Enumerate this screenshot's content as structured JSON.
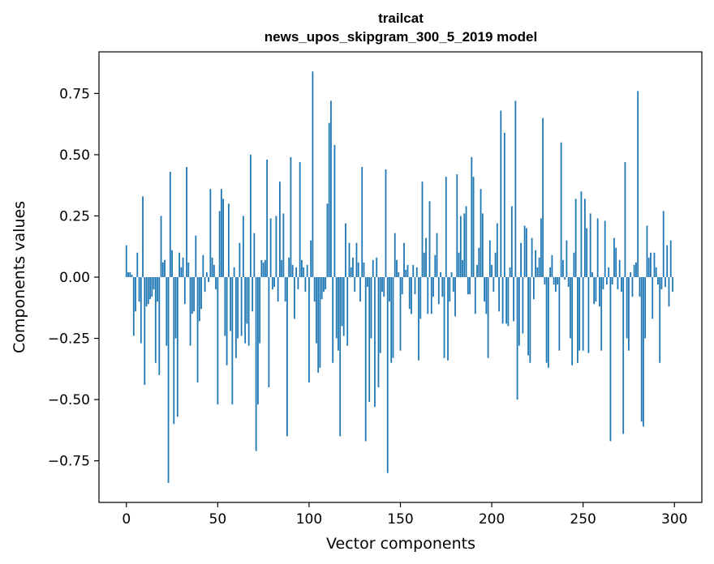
{
  "chart_data": {
    "type": "bar",
    "title": "trailcat",
    "subtitle": "news_upos_skipgram_300_5_2019 model",
    "xlabel": "Vector components",
    "ylabel": "Components values",
    "xlim": [
      -15,
      315
    ],
    "ylim": [
      -0.92,
      0.92
    ],
    "x_ticks": [
      0,
      50,
      100,
      150,
      200,
      250,
      300
    ],
    "x_tick_labels": [
      "0",
      "50",
      "100",
      "150",
      "200",
      "250",
      "300"
    ],
    "y_ticks": [
      0.75,
      0.5,
      0.25,
      0.0,
      -0.25,
      -0.5,
      -0.75
    ],
    "y_tick_labels": [
      "0.75",
      "0.50",
      "0.25",
      "0.00",
      "−0.25",
      "−0.50",
      "−0.75"
    ],
    "bar_color": "#1f77b4",
    "x": "0..299",
    "values": [
      0.13,
      0.02,
      0.02,
      0.01,
      -0.24,
      -0.14,
      0.1,
      -0.1,
      -0.27,
      0.33,
      -0.44,
      -0.12,
      -0.11,
      -0.09,
      -0.08,
      -0.05,
      -0.35,
      -0.1,
      -0.4,
      0.25,
      0.06,
      0.07,
      -0.28,
      -0.84,
      0.43,
      0.11,
      -0.6,
      -0.25,
      -0.57,
      0.1,
      0.04,
      0.08,
      -0.11,
      0.45,
      0.06,
      -0.28,
      -0.15,
      -0.14,
      0.17,
      -0.43,
      -0.18,
      -0.13,
      0.09,
      -0.06,
      0.02,
      -0.02,
      0.36,
      0.08,
      0.05,
      -0.05,
      -0.52,
      0.27,
      0.36,
      0.32,
      -0.24,
      -0.36,
      0.3,
      -0.22,
      -0.52,
      0.04,
      -0.33,
      -0.25,
      0.14,
      -0.24,
      0.25,
      -0.27,
      -0.19,
      -0.28,
      0.5,
      -0.14,
      0.18,
      -0.71,
      -0.52,
      -0.27,
      0.07,
      0.06,
      0.07,
      0.48,
      -0.45,
      0.24,
      -0.05,
      -0.04,
      0.25,
      -0.1,
      0.39,
      0.07,
      0.26,
      -0.1,
      -0.65,
      0.08,
      0.49,
      0.05,
      -0.17,
      0.04,
      -0.05,
      0.47,
      0.07,
      0.04,
      -0.06,
      0.05,
      -0.43,
      0.15,
      0.84,
      -0.1,
      -0.27,
      -0.39,
      -0.37,
      -0.09,
      -0.06,
      -0.05,
      0.3,
      0.63,
      0.72,
      -0.35,
      0.54,
      -0.25,
      -0.3,
      -0.65,
      -0.2,
      -0.24,
      0.22,
      -0.28,
      0.14,
      0.04,
      0.08,
      -0.06,
      0.14,
      0.06,
      -0.1,
      0.45,
      0.06,
      -0.67,
      -0.04,
      -0.51,
      -0.25,
      0.07,
      -0.53,
      0.08,
      -0.45,
      -0.31,
      -0.06,
      -0.08,
      0.44,
      -0.8,
      -0.1,
      -0.35,
      -0.33,
      0.18,
      0.07,
      0.02,
      -0.3,
      -0.07,
      0.14,
      0.03,
      0.05,
      -0.13,
      -0.15,
      0.05,
      -0.07,
      0.04,
      -0.34,
      -0.17,
      0.39,
      0.1,
      0.16,
      -0.15,
      0.31,
      -0.15,
      -0.08,
      0.09,
      0.18,
      -0.11,
      0.02,
      -0.08,
      -0.33,
      0.41,
      -0.34,
      -0.1,
      0.02,
      -0.06,
      -0.16,
      0.42,
      0.1,
      0.25,
      0.07,
      0.26,
      0.29,
      -0.07,
      -0.07,
      0.49,
      0.41,
      -0.15,
      0.05,
      0.12,
      0.36,
      0.26,
      -0.1,
      -0.15,
      -0.33,
      0.15,
      0.05,
      -0.06,
      0.1,
      0.22,
      -0.14,
      0.68,
      -0.19,
      0.59,
      -0.19,
      -0.2,
      0.04,
      0.29,
      -0.18,
      0.72,
      -0.5,
      -0.28,
      0.14,
      -0.23,
      0.21,
      0.2,
      -0.32,
      -0.35,
      0.16,
      -0.09,
      0.11,
      0.04,
      0.08,
      0.24,
      0.65,
      -0.03,
      -0.35,
      -0.37,
      0.04,
      0.09,
      -0.03,
      -0.06,
      -0.03,
      -0.3,
      0.55,
      0.07,
      -0.01,
      0.15,
      -0.04,
      -0.25,
      -0.36,
      0.1,
      0.32,
      -0.35,
      -0.3,
      0.35,
      -0.3,
      0.32,
      0.2,
      -0.31,
      0.26,
      0.02,
      -0.11,
      -0.1,
      0.24,
      -0.12,
      -0.3,
      -0.05,
      0.23,
      -0.03,
      0.04,
      -0.67,
      -0.03,
      0.16,
      0.12,
      -0.05,
      0.07,
      -0.06,
      -0.64,
      0.47,
      -0.25,
      -0.3,
      0.02,
      -0.08,
      0.05,
      0.06,
      0.76,
      -0.08,
      -0.59,
      -0.61,
      -0.25,
      0.21,
      0.08,
      0.1,
      -0.17,
      0.1,
      0.04,
      -0.03,
      -0.35,
      -0.05,
      0.27,
      -0.04,
      0.13,
      -0.12,
      0.15,
      -0.06
    ]
  }
}
